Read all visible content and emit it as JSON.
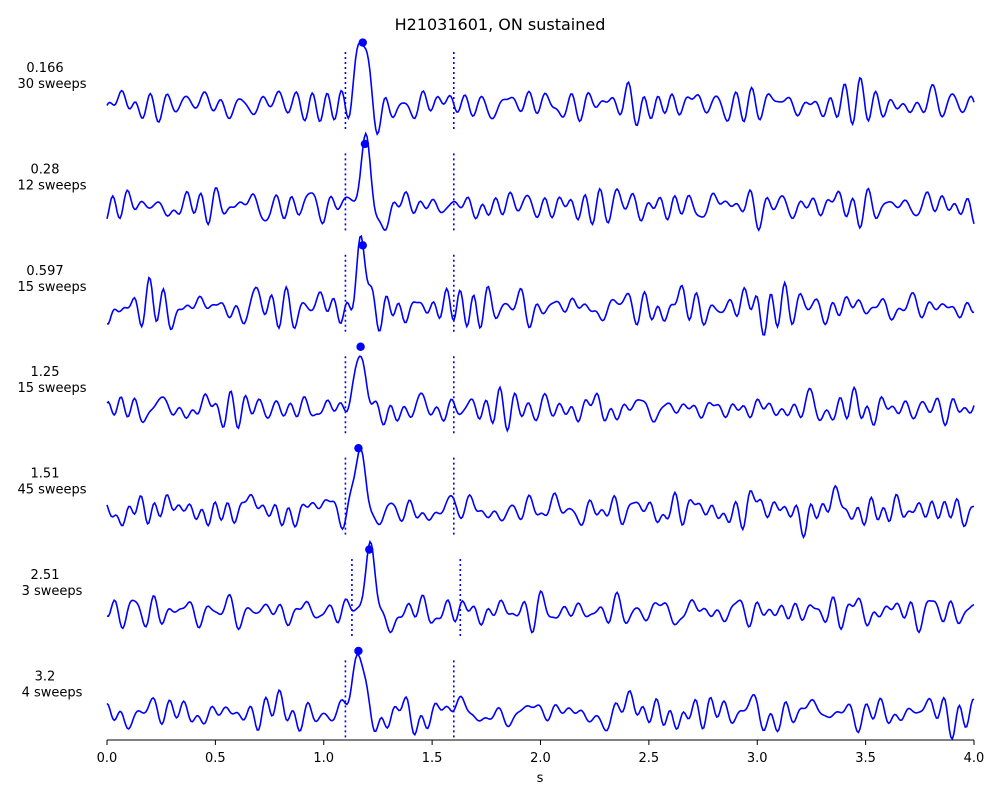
{
  "chart_data": {
    "type": "line",
    "title": "H21031601, ON sustained",
    "xlabel": "s",
    "xlim": [
      0.0,
      4.0
    ],
    "xticks": [
      "0.0",
      "0.5",
      "1.0",
      "1.5",
      "2.0",
      "2.5",
      "3.0",
      "3.5",
      "4.0"
    ],
    "grid": false,
    "line_color": "#0000ff",
    "rows": [
      {
        "label_value": "0.166",
        "label_sweeps": "30 sweeps",
        "window": [
          1.1,
          1.6
        ],
        "peak_x": 1.18,
        "peak_amp": 1.0,
        "seed": 11
      },
      {
        "label_value": "0.28",
        "label_sweeps": "12 sweeps",
        "window": [
          1.1,
          1.6
        ],
        "peak_x": 1.19,
        "peak_amp": 1.0,
        "seed": 23
      },
      {
        "label_value": "0.597",
        "label_sweeps": "15 sweeps",
        "window": [
          1.1,
          1.6
        ],
        "peak_x": 1.18,
        "peak_amp": 1.0,
        "seed": 37
      },
      {
        "label_value": "1.25",
        "label_sweeps": "15 sweeps",
        "window": [
          1.1,
          1.6
        ],
        "peak_x": 1.17,
        "peak_amp": 1.0,
        "seed": 41
      },
      {
        "label_value": "1.51",
        "label_sweeps": "45 sweeps",
        "window": [
          1.1,
          1.6
        ],
        "peak_x": 1.16,
        "peak_amp": 1.0,
        "seed": 53
      },
      {
        "label_value": "2.51",
        "label_sweeps": "3 sweeps",
        "window": [
          1.13,
          1.63
        ],
        "peak_x": 1.21,
        "peak_amp": 1.0,
        "seed": 67
      },
      {
        "label_value": "3.2",
        "label_sweeps": "4 sweeps",
        "window": [
          1.1,
          1.6
        ],
        "peak_x": 1.16,
        "peak_amp": 1.0,
        "seed": 79
      }
    ]
  }
}
